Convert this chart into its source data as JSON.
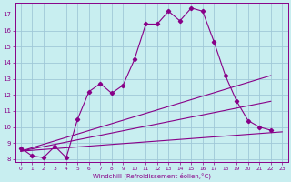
{
  "xlabel": "Windchill (Refroidissement éolien,°C)",
  "bg_color": "#c8eef0",
  "grid_color": "#a0c8d8",
  "line_color": "#880088",
  "xlim": [
    -0.5,
    23.5
  ],
  "ylim": [
    7.8,
    17.7
  ],
  "xticks": [
    0,
    1,
    2,
    3,
    4,
    5,
    6,
    7,
    8,
    9,
    10,
    11,
    12,
    13,
    14,
    15,
    16,
    17,
    18,
    19,
    20,
    21,
    22,
    23
  ],
  "yticks": [
    8,
    9,
    10,
    11,
    12,
    13,
    14,
    15,
    16,
    17
  ],
  "main_x": [
    0,
    1,
    2,
    3,
    4,
    5,
    6,
    7,
    8,
    9,
    10,
    11,
    12,
    13,
    14,
    15,
    16,
    17,
    18,
    19,
    20,
    21,
    22
  ],
  "main_y": [
    8.7,
    8.2,
    8.1,
    8.8,
    8.1,
    10.5,
    12.2,
    12.7,
    12.1,
    12.6,
    14.2,
    16.4,
    16.4,
    17.2,
    16.6,
    17.4,
    17.2,
    15.3,
    13.2,
    11.6,
    10.4,
    10.0,
    9.8
  ],
  "line1_x": [
    0,
    22
  ],
  "line1_y": [
    8.5,
    13.2
  ],
  "line2_x": [
    0,
    22
  ],
  "line2_y": [
    8.5,
    11.6
  ],
  "line3_x": [
    0,
    23
  ],
  "line3_y": [
    8.5,
    9.7
  ]
}
